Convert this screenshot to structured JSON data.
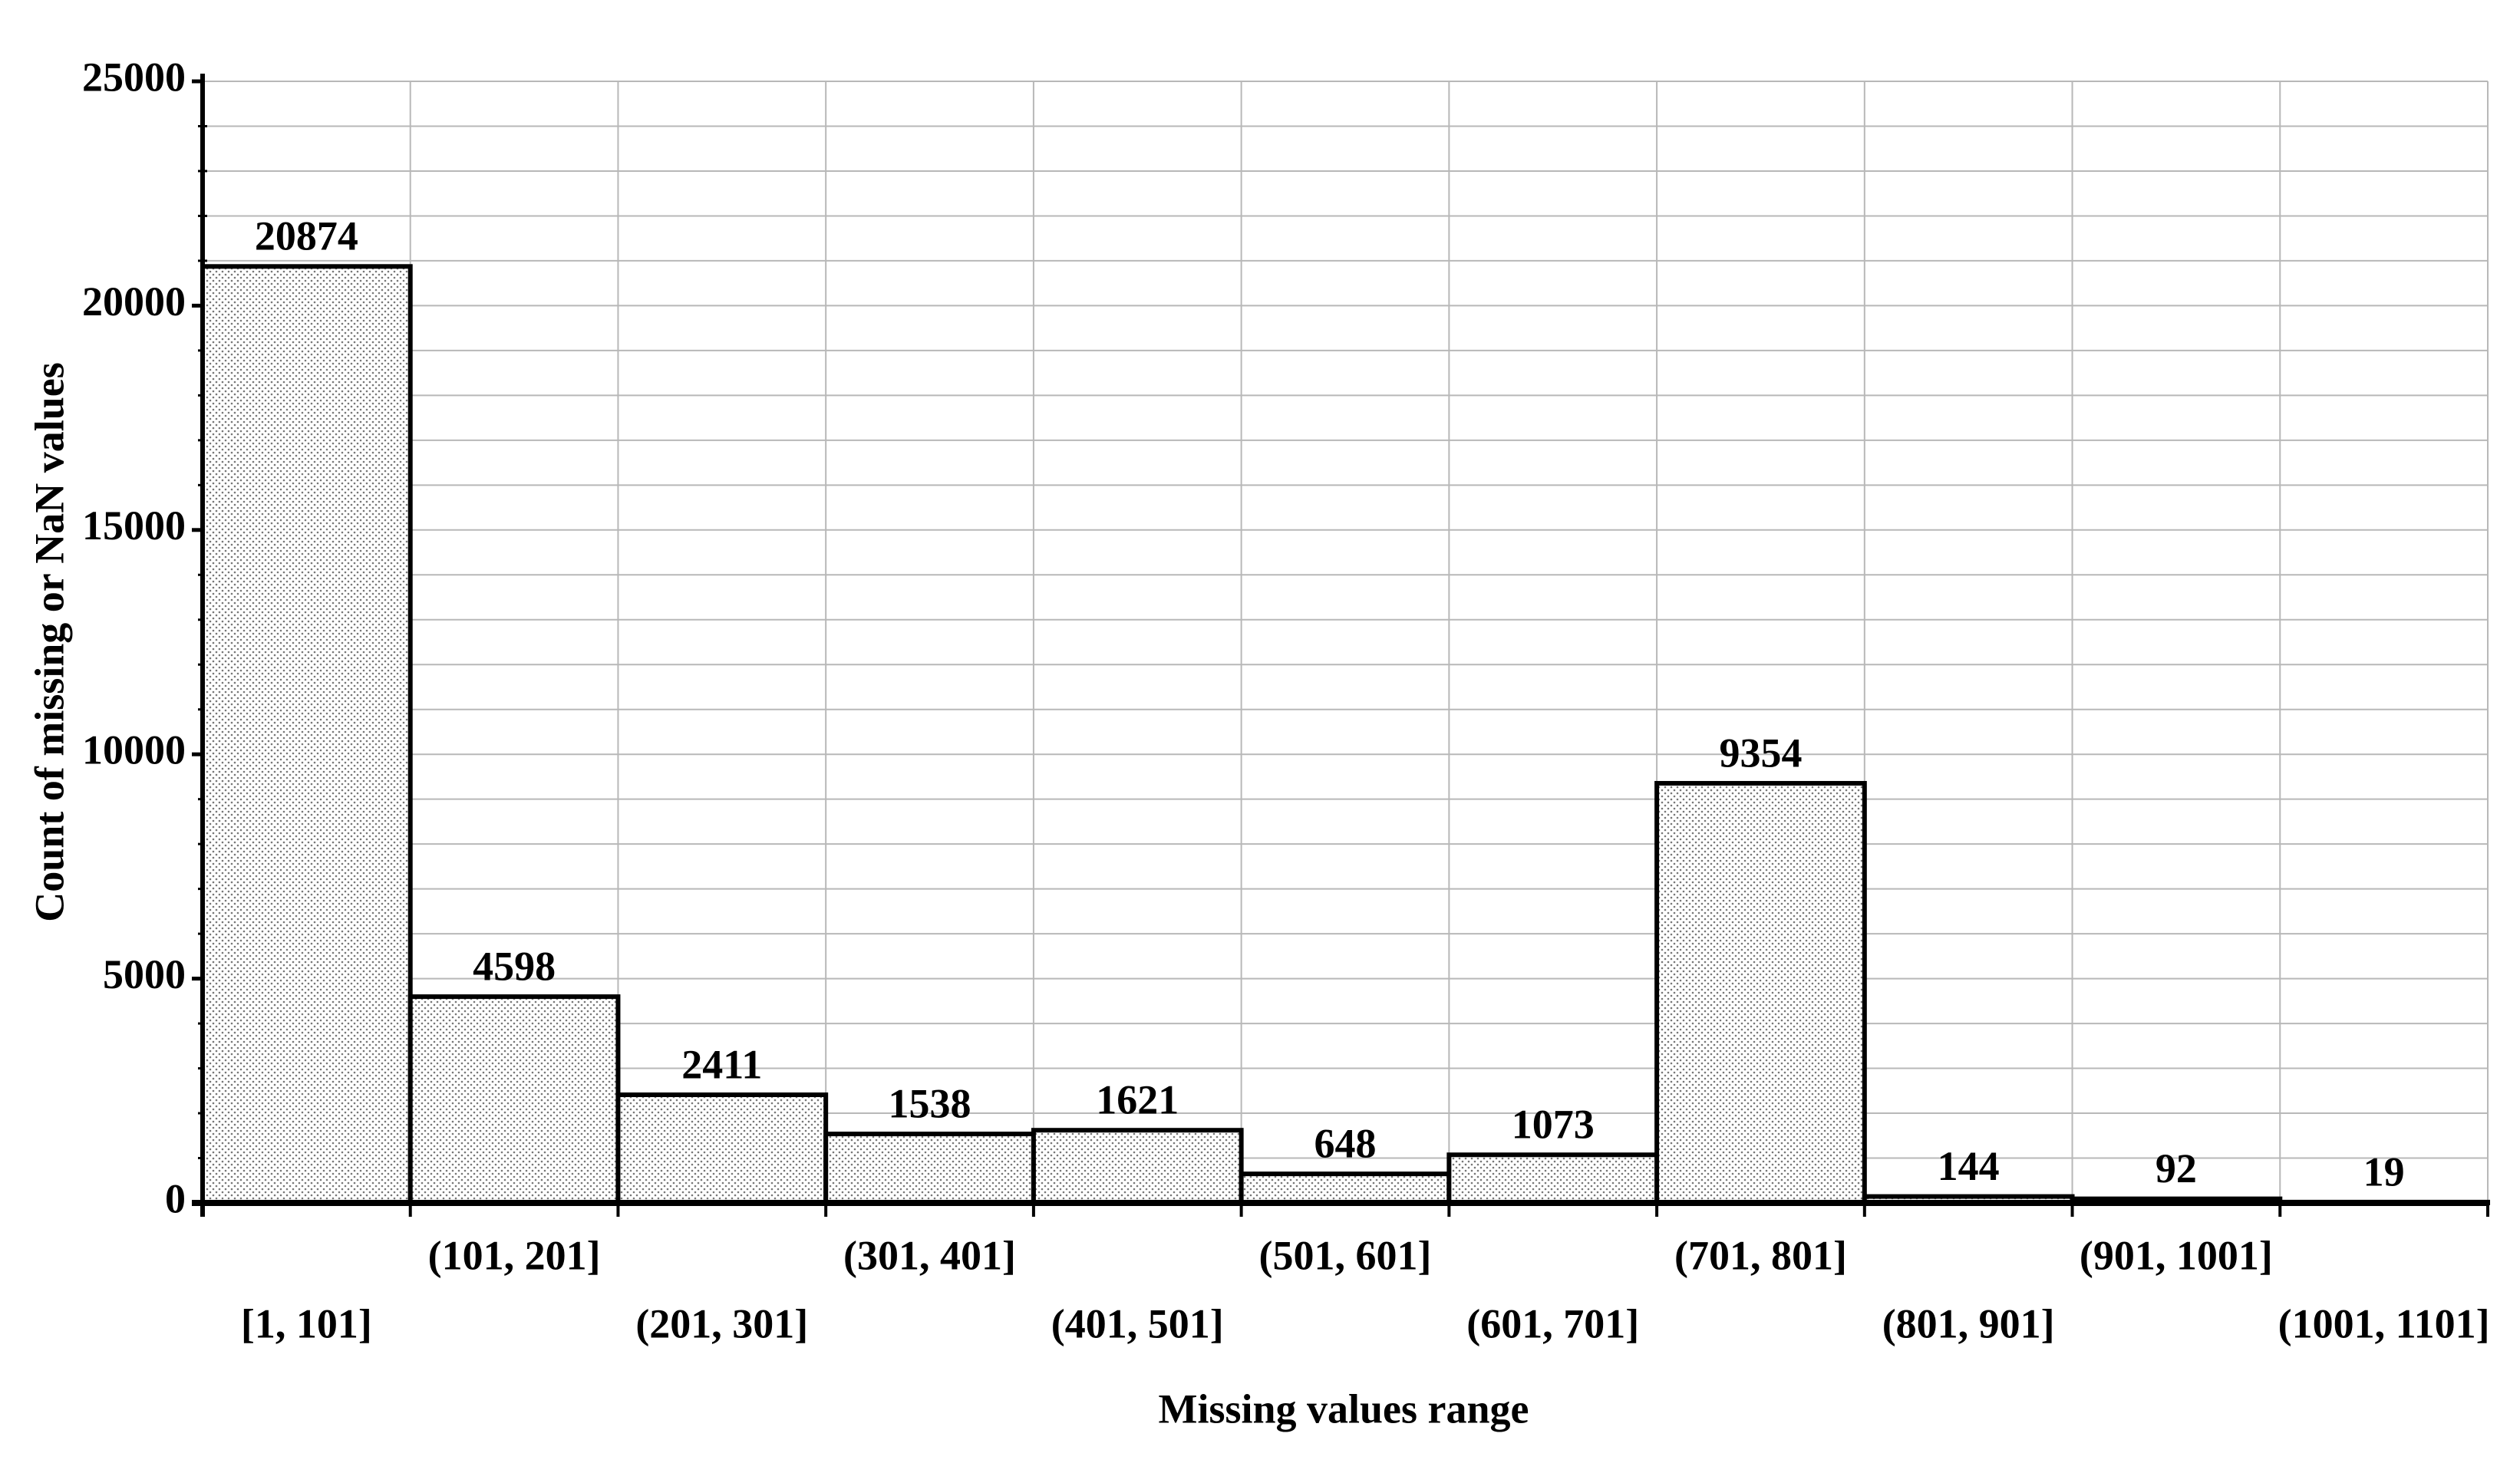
{
  "chart_data": {
    "type": "bar",
    "x_label": "Missing values range",
    "y_label": "Count of missing or NaN values",
    "categories": [
      "[1, 101]",
      "(101, 201]",
      "(201, 301]",
      "(301, 401]",
      "(401, 501]",
      "(501, 601]",
      "(601, 701]",
      "(701, 801]",
      "(801, 901]",
      "(901, 1001]",
      "(1001, 1101]"
    ],
    "values": [
      20874,
      4598,
      2411,
      1538,
      1621,
      648,
      1073,
      9354,
      144,
      92,
      19
    ],
    "ylim": [
      0,
      25000
    ],
    "yticks": [
      0,
      5000,
      10000,
      15000,
      20000,
      25000
    ],
    "yminorticks": [
      1000,
      2000,
      3000,
      4000,
      6000,
      7000,
      8000,
      9000,
      11000,
      12000,
      13000,
      14000,
      16000,
      17000,
      18000,
      19000,
      21000,
      22000,
      23000,
      24000
    ],
    "grid": true,
    "color": "#d0d0d0"
  }
}
